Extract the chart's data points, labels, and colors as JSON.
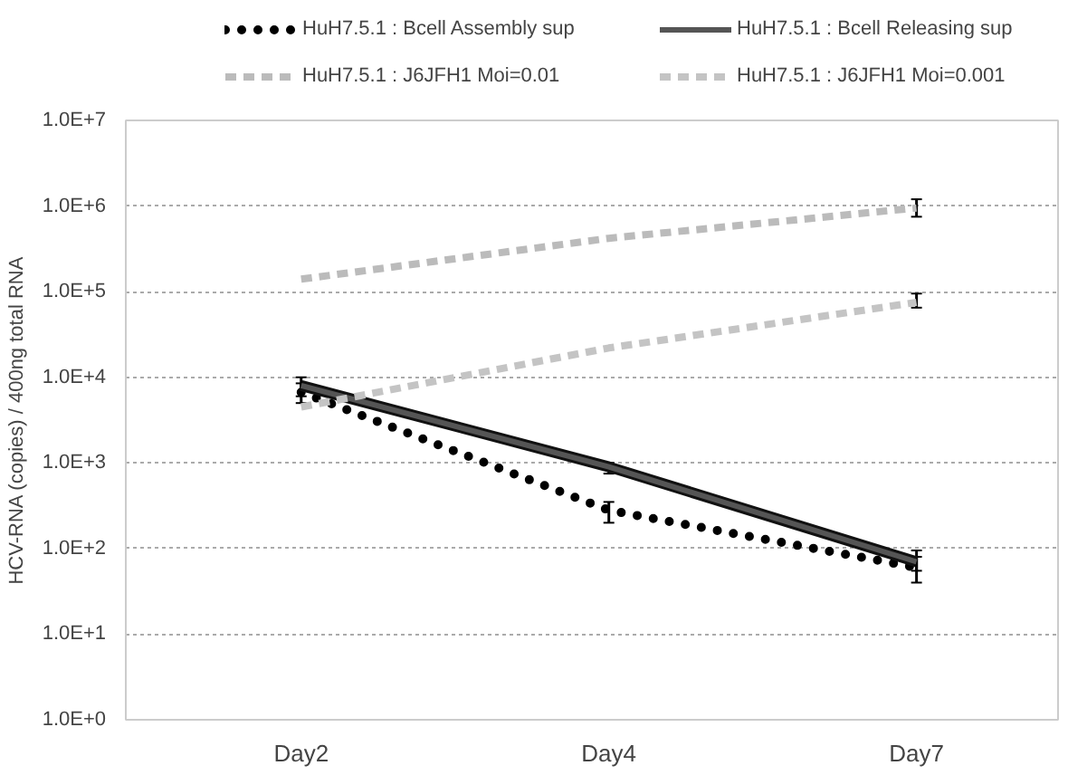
{
  "chart_data": {
    "type": "line",
    "ylabel": "HCV-RNA (copies) / 400ng total RNA",
    "categories": [
      "Day2",
      "Day4",
      "Day7"
    ],
    "log": "y",
    "ylim": [
      1,
      10000000
    ],
    "yticks": [
      {
        "value": 1,
        "label": "1.0E+0"
      },
      {
        "value": 10,
        "label": "1.0E+1"
      },
      {
        "value": 100,
        "label": "1.0E+2"
      },
      {
        "value": 1000,
        "label": "1.0E+3"
      },
      {
        "value": 10000,
        "label": "1.0E+4"
      },
      {
        "value": 100000,
        "label": "1.0E+5"
      },
      {
        "value": 1000000,
        "label": "1.0E+6"
      },
      {
        "value": 10000000,
        "label": "1.0E+7"
      }
    ],
    "grid": "y",
    "legend": "top",
    "series": [
      {
        "name": "HuH7.5.1 : Bcell Assembly sup",
        "color": "#000000",
        "line_style": "dotted",
        "values": [
          6700,
          280,
          60
        ],
        "errors": [
          [
            5000,
            8500
          ],
          [
            200,
            350
          ],
          [
            40,
            80
          ]
        ]
      },
      {
        "name": "HuH7.5.1 : Bcell Releasing sup",
        "color": "#555555",
        "line_style": "solid",
        "values": [
          8000,
          900,
          70
        ],
        "errors": [
          [
            6000,
            10000
          ],
          [
            750,
            1000
          ],
          [
            55,
            95
          ]
        ]
      },
      {
        "name": "HuH7.5.1 : J6JFH1 Moi=0.01",
        "color": "#bbbbbb",
        "line_style": "dashed",
        "values": [
          140000,
          420000,
          950000
        ],
        "errors": [
          null,
          null,
          [
            750000,
            1200000
          ]
        ]
      },
      {
        "name": "HuH7.5.1 : J6JFH1 Moi=0.001",
        "color": "#c4c4c4",
        "line_style": "dashed",
        "values": [
          4500,
          22000,
          75000
        ],
        "errors": [
          null,
          null,
          [
            65000,
            95000
          ]
        ]
      }
    ]
  }
}
